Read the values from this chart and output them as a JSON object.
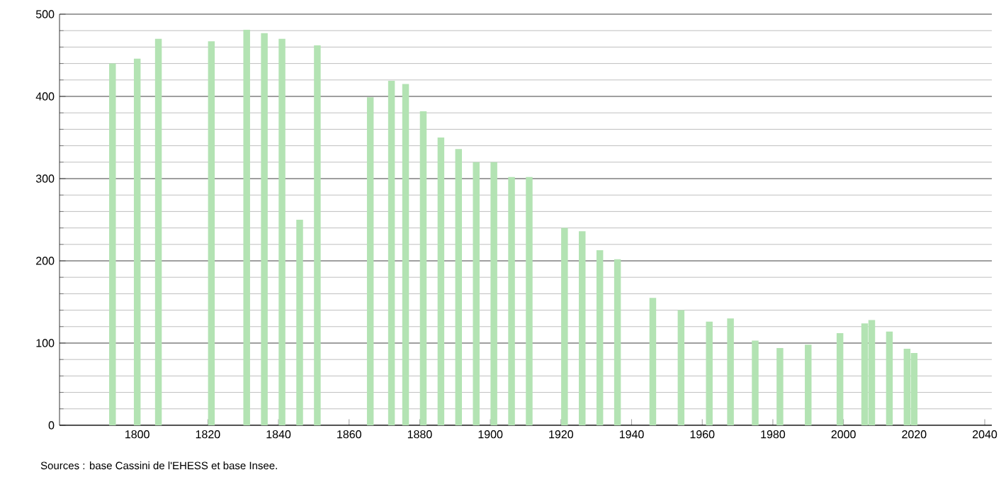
{
  "chart_data": {
    "type": "bar",
    "color": "#b3e3b3",
    "x": [
      1793,
      1800,
      1806,
      1821,
      1831,
      1836,
      1841,
      1846,
      1851,
      1866,
      1872,
      1876,
      1881,
      1886,
      1891,
      1896,
      1901,
      1906,
      1911,
      1921,
      1926,
      1931,
      1936,
      1946,
      1954,
      1962,
      1968,
      1975,
      1982,
      1990,
      1999,
      2006,
      2008,
      2013,
      2018,
      2020
    ],
    "values": [
      440,
      446,
      470,
      467,
      481,
      477,
      470,
      250,
      462,
      399,
      419,
      415,
      382,
      350,
      336,
      320,
      320,
      302,
      302,
      240,
      236,
      213,
      202,
      155,
      140,
      126,
      130,
      103,
      94,
      98,
      112,
      124,
      128,
      114,
      93,
      88
    ],
    "xlim": [
      1778,
      2042
    ],
    "xticks": [
      1800,
      1820,
      1840,
      1860,
      1880,
      1900,
      1920,
      1940,
      1960,
      1980,
      2000,
      2020,
      2040
    ],
    "ylim": [
      0,
      500
    ],
    "yticks": [
      0,
      100,
      200,
      300,
      400,
      500
    ],
    "grid": "y",
    "annotations": [
      "Sources : base Cassini de l'EHESS et base Insee."
    ]
  }
}
